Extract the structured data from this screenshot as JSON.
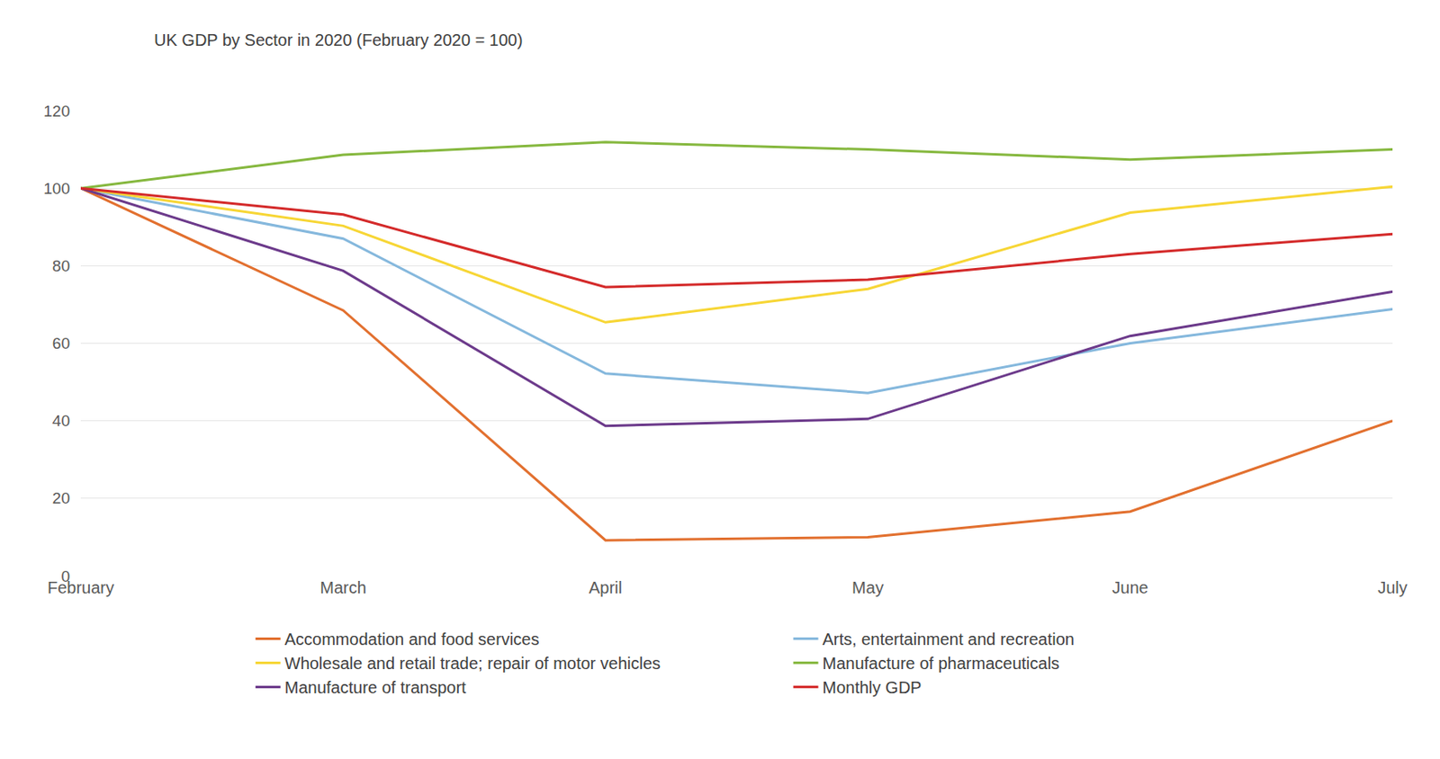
{
  "chart_data": {
    "type": "line",
    "title": "UK GDP by Sector in 2020 (February 2020 = 100)",
    "categories": [
      "February",
      "March",
      "April",
      "May",
      "June",
      "July"
    ],
    "series": [
      {
        "name": "Accommodation and food services",
        "color": "#e2702f",
        "values": [
          100,
          68.5,
          9.2,
          10,
          16.6,
          40
        ]
      },
      {
        "name": "Arts, entertainment and recreation",
        "color": "#85b8dd",
        "values": [
          100,
          87,
          52.2,
          47.2,
          60,
          68.8
        ]
      },
      {
        "name": "Wholesale and retail trade; repair of motor vehicles",
        "color": "#f7d635",
        "values": [
          100,
          90.3,
          65.4,
          74,
          93.7,
          100.4
        ]
      },
      {
        "name": "Manufacture of pharmaceuticals",
        "color": "#86b83f",
        "values": [
          100,
          108.6,
          111.9,
          110,
          107.4,
          110
        ]
      },
      {
        "name": "Manufacture of transport",
        "color": "#6c3a8b",
        "values": [
          100,
          78.7,
          38.7,
          40.5,
          61.9,
          73.3
        ]
      },
      {
        "name": "Monthly GDP",
        "color": "#d42a2a",
        "values": [
          100,
          93.2,
          74.5,
          76.4,
          83,
          88.2
        ]
      }
    ],
    "ylim": [
      0,
      120
    ],
    "yticks": [
      0,
      20,
      40,
      60,
      80,
      100,
      120
    ],
    "grid": true,
    "legend": "bottom"
  }
}
